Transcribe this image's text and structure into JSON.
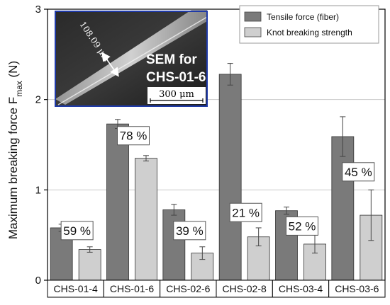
{
  "chart_data": {
    "type": "bar",
    "ylabel": "Maximum breaking force F",
    "ylabel_sub": "max",
    "ylabel_unit": " (N)",
    "ylim": [
      0,
      3
    ],
    "yticks": [
      0,
      1,
      2,
      3
    ],
    "grid": "horizontal",
    "legend_position": "top-right",
    "categories": [
      "CHS-01-4",
      "CHS-01-6",
      "CHS-02-6",
      "CHS-02-8",
      "CHS-03-4",
      "CHS-03-6"
    ],
    "series": [
      {
        "name": "Tensile force (fiber)",
        "color": "#7a7a7a",
        "values": [
          0.58,
          1.73,
          0.78,
          2.28,
          0.77,
          1.59
        ],
        "errors": [
          0.04,
          0.05,
          0.06,
          0.12,
          0.04,
          0.22
        ]
      },
      {
        "name": "Knot breaking strength",
        "color": "#cfcfcf",
        "values": [
          0.34,
          1.35,
          0.3,
          0.48,
          0.4,
          0.72
        ],
        "errors": [
          0.03,
          0.03,
          0.07,
          0.1,
          0.1,
          0.28
        ]
      }
    ],
    "annotations": [
      "59 %",
      "78 %",
      "39 %",
      "21 %",
      "52 %",
      "45 %"
    ],
    "annotation_levels": [
      0.55,
      1.6,
      0.55,
      0.75,
      0.6,
      1.2
    ]
  },
  "inset": {
    "title_line1": "SEM for",
    "title_line2": "CHS-01-6",
    "measure_label": "108.09 μm",
    "scale_label": "300 μm",
    "border_color": "#1f3aa8"
  }
}
